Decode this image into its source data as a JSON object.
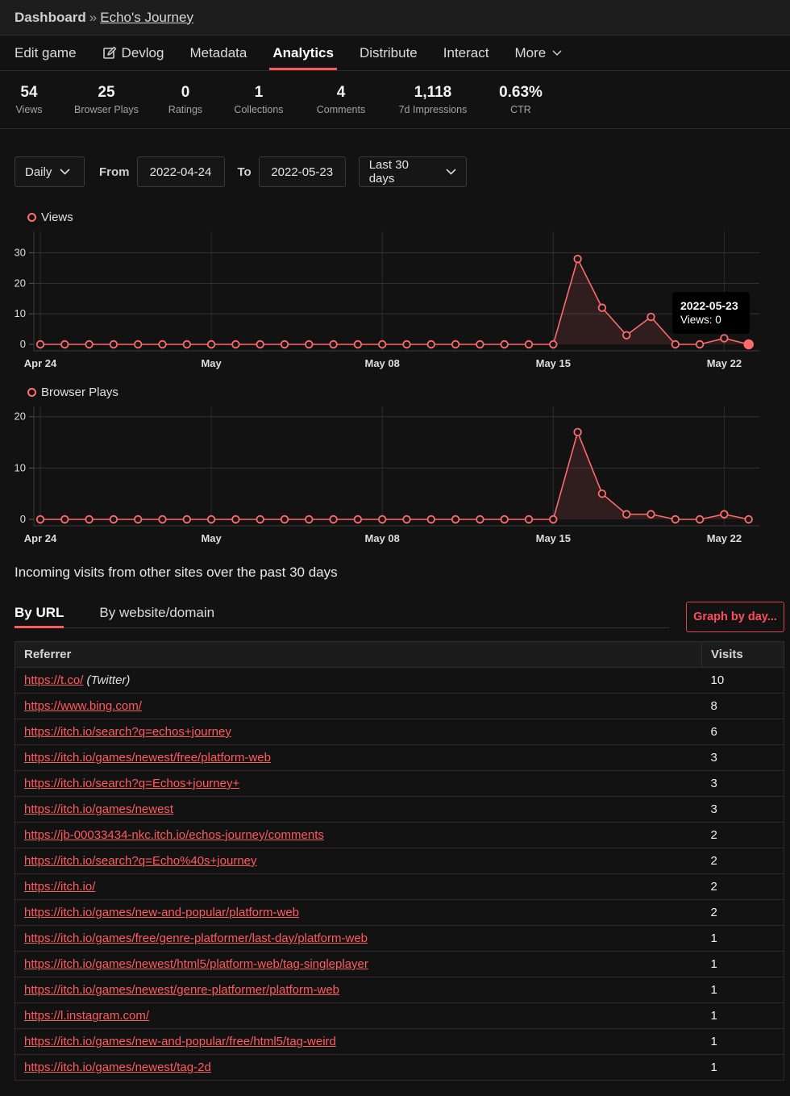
{
  "breadcrumb": {
    "root": "Dashboard",
    "sep": "»",
    "game": "Echo's Journey"
  },
  "nav": [
    {
      "label": "Edit game",
      "icon": ""
    },
    {
      "label": "Devlog",
      "icon": "edit-icon"
    },
    {
      "label": "Metadata",
      "icon": ""
    },
    {
      "label": "Analytics",
      "icon": "",
      "active": true
    },
    {
      "label": "Distribute",
      "icon": ""
    },
    {
      "label": "Interact",
      "icon": ""
    },
    {
      "label": "More",
      "icon": "chevron-down-icon"
    }
  ],
  "stats": [
    {
      "value": "54",
      "label": "Views"
    },
    {
      "value": "25",
      "label": "Browser Plays"
    },
    {
      "value": "0",
      "label": "Ratings"
    },
    {
      "value": "1",
      "label": "Collections"
    },
    {
      "value": "4",
      "label": "Comments"
    },
    {
      "value": "1,118",
      "label": "7d Impressions"
    },
    {
      "value": "0.63%",
      "label": "CTR"
    }
  ],
  "filters": {
    "interval": "Daily",
    "from_label": "From",
    "from_value": "2022-04-24",
    "to_label": "To",
    "to_value": "2022-05-23",
    "range": "Last 30 days"
  },
  "tooltip": {
    "date": "2022-05-23",
    "text": "Views: 0"
  },
  "chart_data": [
    {
      "type": "area",
      "title": "Views",
      "x": [
        "2022-04-24",
        "2022-04-25",
        "2022-04-26",
        "2022-04-27",
        "2022-04-28",
        "2022-04-29",
        "2022-04-30",
        "2022-05-01",
        "2022-05-02",
        "2022-05-03",
        "2022-05-04",
        "2022-05-05",
        "2022-05-06",
        "2022-05-07",
        "2022-05-08",
        "2022-05-09",
        "2022-05-10",
        "2022-05-11",
        "2022-05-12",
        "2022-05-13",
        "2022-05-14",
        "2022-05-15",
        "2022-05-16",
        "2022-05-17",
        "2022-05-18",
        "2022-05-19",
        "2022-05-20",
        "2022-05-21",
        "2022-05-22",
        "2022-05-23"
      ],
      "series": [
        {
          "name": "Views",
          "values": [
            0,
            0,
            0,
            0,
            0,
            0,
            0,
            0,
            0,
            0,
            0,
            0,
            0,
            0,
            0,
            0,
            0,
            0,
            0,
            0,
            0,
            0,
            28,
            12,
            3,
            9,
            0,
            0,
            2,
            0
          ]
        }
      ],
      "x_tick_labels": [
        "Apr 24",
        "May",
        "May 08",
        "May 15",
        "May 22"
      ],
      "y_ticks": [
        0,
        10,
        20,
        30
      ],
      "ylim": [
        0,
        37
      ],
      "grid": true,
      "color": "#ff6b6b"
    },
    {
      "type": "area",
      "title": "Browser Plays",
      "x": [
        "2022-04-24",
        "2022-04-25",
        "2022-04-26",
        "2022-04-27",
        "2022-04-28",
        "2022-04-29",
        "2022-04-30",
        "2022-05-01",
        "2022-05-02",
        "2022-05-03",
        "2022-05-04",
        "2022-05-05",
        "2022-05-06",
        "2022-05-07",
        "2022-05-08",
        "2022-05-09",
        "2022-05-10",
        "2022-05-11",
        "2022-05-12",
        "2022-05-13",
        "2022-05-14",
        "2022-05-15",
        "2022-05-16",
        "2022-05-17",
        "2022-05-18",
        "2022-05-19",
        "2022-05-20",
        "2022-05-21",
        "2022-05-22",
        "2022-05-23"
      ],
      "series": [
        {
          "name": "Browser Plays",
          "values": [
            0,
            0,
            0,
            0,
            0,
            0,
            0,
            0,
            0,
            0,
            0,
            0,
            0,
            0,
            0,
            0,
            0,
            0,
            0,
            0,
            0,
            0,
            17,
            5,
            1,
            1,
            0,
            0,
            1,
            0
          ]
        }
      ],
      "x_tick_labels": [
        "Apr 24",
        "May",
        "May 08",
        "May 15",
        "May 22"
      ],
      "y_ticks": [
        0,
        10,
        20
      ],
      "ylim": [
        0,
        22
      ],
      "grid": true,
      "color": "#ff6b6b"
    }
  ],
  "incoming_title": "Incoming visits from other sites over the past 30 days",
  "tabs": [
    {
      "label": "By URL",
      "active": true
    },
    {
      "label": "By website/domain"
    }
  ],
  "graph_button": "Graph by day...",
  "table": {
    "headers": [
      "Referrer",
      "Visits"
    ],
    "rows": [
      {
        "url": "https://t.co/",
        "note": "(Twitter)",
        "visits": "10"
      },
      {
        "url": "https://www.bing.com/",
        "note": "",
        "visits": "8"
      },
      {
        "url": "https://itch.io/search?q=echos+journey",
        "note": "",
        "visits": "6"
      },
      {
        "url": "https://itch.io/games/newest/free/platform-web",
        "note": "",
        "visits": "3"
      },
      {
        "url": "https://itch.io/search?q=Echos+journey+",
        "note": "",
        "visits": "3"
      },
      {
        "url": "https://itch.io/games/newest",
        "note": "",
        "visits": "3"
      },
      {
        "url": "https://jb-00033434-nkc.itch.io/echos-journey/comments",
        "note": "",
        "visits": "2"
      },
      {
        "url": "https://itch.io/search?q=Echo%40s+journey",
        "note": "",
        "visits": "2"
      },
      {
        "url": "https://itch.io/",
        "note": "",
        "visits": "2"
      },
      {
        "url": "https://itch.io/games/new-and-popular/platform-web",
        "note": "",
        "visits": "2"
      },
      {
        "url": "https://itch.io/games/free/genre-platformer/last-day/platform-web",
        "note": "",
        "visits": "1"
      },
      {
        "url": "https://itch.io/games/newest/html5/platform-web/tag-singleplayer",
        "note": "",
        "visits": "1"
      },
      {
        "url": "https://itch.io/games/newest/genre-platformer/platform-web",
        "note": "",
        "visits": "1"
      },
      {
        "url": "https://l.instagram.com/",
        "note": "",
        "visits": "1"
      },
      {
        "url": "https://itch.io/games/new-and-popular/free/html5/tag-weird",
        "note": "",
        "visits": "1"
      },
      {
        "url": "https://itch.io/games/newest/tag-2d",
        "note": "",
        "visits": "1"
      }
    ]
  }
}
